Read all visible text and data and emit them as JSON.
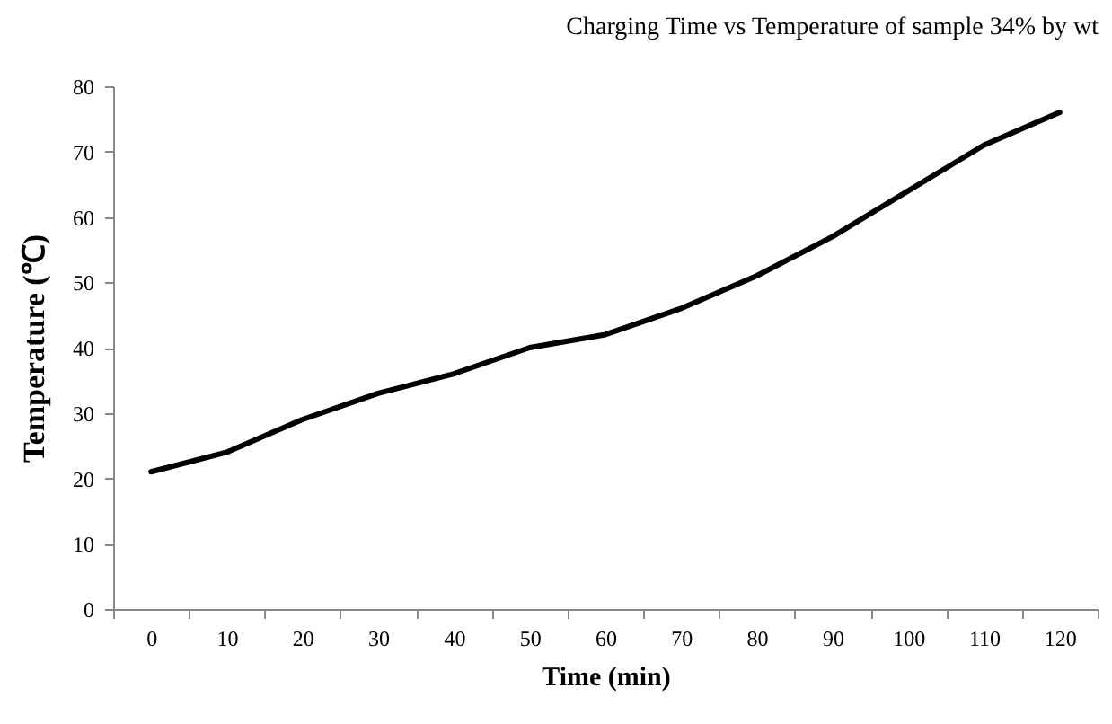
{
  "chart_data": {
    "type": "line",
    "title": "Charging Time vs Temperature of sample 34% by wt",
    "xlabel": "Time (min)",
    "ylabel": "Temperature (℃)",
    "categories": [
      "0",
      "10",
      "20",
      "30",
      "40",
      "50",
      "60",
      "70",
      "80",
      "90",
      "100",
      "110",
      "120"
    ],
    "series": [
      {
        "color": "#000000",
        "values": [
          21,
          24,
          29,
          33,
          36,
          40,
          42,
          46,
          51,
          57,
          64,
          71,
          76
        ]
      }
    ],
    "ylim": [
      0,
      80
    ],
    "yticks": [
      0,
      10,
      20,
      30,
      40,
      50,
      60,
      70,
      80
    ],
    "grid": false,
    "marker": "none",
    "line_style": "solid"
  }
}
